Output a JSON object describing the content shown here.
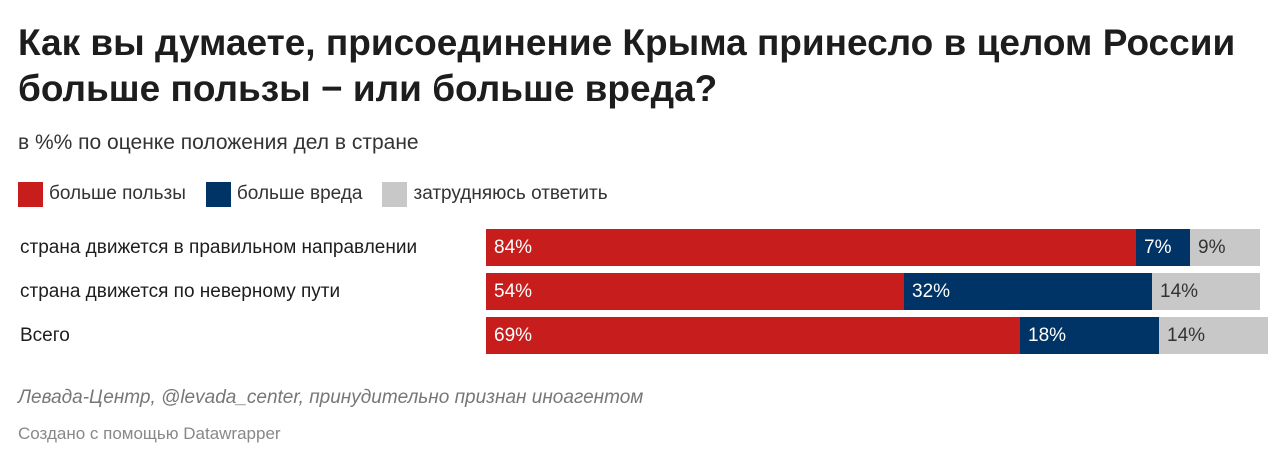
{
  "title": "Как вы думаете, присоединение Крыма принесло в целом России больше пользы − или больше вреда?",
  "subtitle": "в %% по оценке положения дел в стране",
  "source": "Левада-Центр, @levada_center, принудительно признан иноагентом",
  "credit": "Создано с помощью Datawrapper",
  "colors": {
    "benefit": "#c71e1d",
    "harm": "#003366",
    "unsure": "#c8c8c8"
  },
  "chart_data": {
    "type": "bar",
    "orientation": "horizontal",
    "stacked": true,
    "value_unit": "%",
    "categories": [
      "страна движется в правильном направлении",
      "страна движется по неверному пути",
      "Всего"
    ],
    "series": [
      {
        "name": "больше пользы",
        "key": "benefit",
        "values": [
          84,
          54,
          69
        ]
      },
      {
        "name": "больше вреда",
        "key": "harm",
        "values": [
          7,
          32,
          18
        ]
      },
      {
        "name": "затрудняюсь ответить",
        "key": "unsure",
        "values": [
          9,
          14,
          14
        ]
      }
    ],
    "xlim": [
      0,
      100
    ],
    "legend_position": "top-left",
    "grid": false
  }
}
